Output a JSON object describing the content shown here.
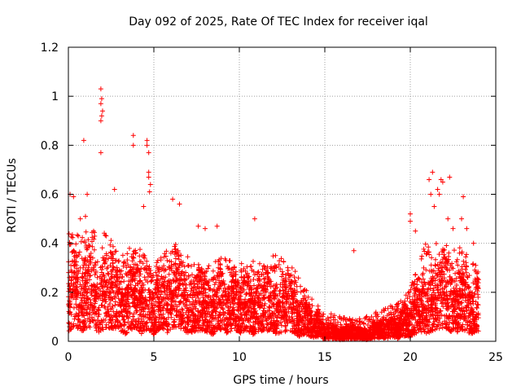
{
  "chart_data": {
    "type": "scatter",
    "title": "Day 092 of 2025, Rate Of TEC Index for receiver iqal",
    "xlabel": "GPS time / hours",
    "ylabel": "ROTI / TECUs",
    "xlim": [
      0,
      25
    ],
    "ylim": [
      0,
      1.2
    ],
    "x_ticks": [
      0,
      5,
      10,
      15,
      20,
      25
    ],
    "x_tick_labels": [
      "0",
      "5",
      "10",
      "15",
      "20",
      "25"
    ],
    "y_ticks": [
      0,
      0.2,
      0.4,
      0.6,
      0.8,
      1.0,
      1.2
    ],
    "y_tick_labels": [
      "0",
      "0.2",
      "0.4",
      "0.6",
      "0.8",
      "1",
      "1.2"
    ],
    "grid": true,
    "marker": "+",
    "color": "#ff0000",
    "envelope": {
      "description": "Approximate ROTI activity by hour (dense cloud of observations)",
      "hours": [
        0,
        1,
        2,
        3,
        4,
        5,
        6,
        7,
        8,
        9,
        10,
        11,
        12,
        13,
        14,
        15,
        16,
        17,
        18,
        19,
        20,
        21,
        22,
        23,
        24
      ],
      "typical_level": [
        0.18,
        0.18,
        0.19,
        0.15,
        0.17,
        0.14,
        0.19,
        0.16,
        0.13,
        0.15,
        0.14,
        0.13,
        0.15,
        0.13,
        0.08,
        0.04,
        0.03,
        0.03,
        0.04,
        0.05,
        0.08,
        0.16,
        0.17,
        0.15,
        0.12
      ],
      "upper_level": [
        0.45,
        0.45,
        0.45,
        0.38,
        0.4,
        0.32,
        0.4,
        0.35,
        0.3,
        0.35,
        0.32,
        0.33,
        0.36,
        0.32,
        0.2,
        0.12,
        0.1,
        0.1,
        0.12,
        0.15,
        0.22,
        0.42,
        0.4,
        0.38,
        0.3
      ]
    },
    "outliers": [
      {
        "x": 0.1,
        "y": 0.6
      },
      {
        "x": 0.3,
        "y": 0.59
      },
      {
        "x": 0.7,
        "y": 0.5
      },
      {
        "x": 0.9,
        "y": 0.82
      },
      {
        "x": 1.1,
        "y": 0.6
      },
      {
        "x": 1.0,
        "y": 0.51
      },
      {
        "x": 1.9,
        "y": 1.03
      },
      {
        "x": 1.95,
        "y": 0.99
      },
      {
        "x": 1.9,
        "y": 0.97
      },
      {
        "x": 2.0,
        "y": 0.94
      },
      {
        "x": 1.95,
        "y": 0.92
      },
      {
        "x": 1.9,
        "y": 0.9
      },
      {
        "x": 1.9,
        "y": 0.77
      },
      {
        "x": 2.7,
        "y": 0.62
      },
      {
        "x": 3.8,
        "y": 0.84
      },
      {
        "x": 3.8,
        "y": 0.8
      },
      {
        "x": 4.6,
        "y": 0.82
      },
      {
        "x": 4.6,
        "y": 0.8
      },
      {
        "x": 4.7,
        "y": 0.77
      },
      {
        "x": 4.7,
        "y": 0.69
      },
      {
        "x": 4.7,
        "y": 0.67
      },
      {
        "x": 4.8,
        "y": 0.64
      },
      {
        "x": 4.75,
        "y": 0.61
      },
      {
        "x": 4.4,
        "y": 0.55
      },
      {
        "x": 6.1,
        "y": 0.58
      },
      {
        "x": 6.5,
        "y": 0.56
      },
      {
        "x": 7.6,
        "y": 0.47
      },
      {
        "x": 8.0,
        "y": 0.46
      },
      {
        "x": 8.7,
        "y": 0.47
      },
      {
        "x": 10.9,
        "y": 0.5
      },
      {
        "x": 16.7,
        "y": 0.37
      },
      {
        "x": 20.0,
        "y": 0.52
      },
      {
        "x": 20.0,
        "y": 0.49
      },
      {
        "x": 20.3,
        "y": 0.45
      },
      {
        "x": 21.1,
        "y": 0.66
      },
      {
        "x": 21.3,
        "y": 0.69
      },
      {
        "x": 21.8,
        "y": 0.66
      },
      {
        "x": 21.9,
        "y": 0.65
      },
      {
        "x": 21.6,
        "y": 0.62
      },
      {
        "x": 21.7,
        "y": 0.6
      },
      {
        "x": 22.3,
        "y": 0.67
      },
      {
        "x": 21.2,
        "y": 0.6
      },
      {
        "x": 21.4,
        "y": 0.55
      },
      {
        "x": 22.2,
        "y": 0.5
      },
      {
        "x": 22.5,
        "y": 0.46
      },
      {
        "x": 23.1,
        "y": 0.59
      },
      {
        "x": 23.0,
        "y": 0.5
      },
      {
        "x": 23.3,
        "y": 0.46
      },
      {
        "x": 23.7,
        "y": 0.4
      }
    ]
  }
}
